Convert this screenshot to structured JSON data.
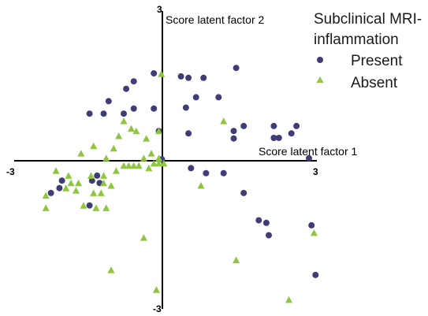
{
  "chart_data": {
    "type": "scatter",
    "xlabel": "Score latent factor 1",
    "ylabel": "Score latent factor 2",
    "xlim": [
      -3,
      3
    ],
    "ylim": [
      -3,
      3
    ],
    "x_ticks": [
      "-3",
      "3"
    ],
    "y_ticks": [
      "3",
      "-3"
    ],
    "grid": false,
    "legend": {
      "title": "Subclinical MRI-inflammation",
      "title_lines": [
        "Subclinical MRI-",
        "inflammation"
      ],
      "placement": "top-right"
    },
    "series": [
      {
        "name": "Present",
        "marker": "circle",
        "color": "#3f3d75",
        "points": [
          [
            -2.22,
            -0.65
          ],
          [
            -2.05,
            -0.55
          ],
          [
            -2.0,
            -0.4
          ],
          [
            -1.4,
            -0.4
          ],
          [
            -1.25,
            -0.45
          ],
          [
            -1.45,
            -0.9
          ],
          [
            -1.3,
            -0.3
          ],
          [
            -1.45,
            0.95
          ],
          [
            -1.17,
            0.95
          ],
          [
            -1.07,
            1.2
          ],
          [
            -0.72,
            1.45
          ],
          [
            -0.57,
            1.6
          ],
          [
            -0.57,
            1.05
          ],
          [
            -0.77,
            0.95
          ],
          [
            -0.17,
            1.76
          ],
          [
            -0.17,
            1.05
          ],
          [
            -0.07,
            0.6
          ],
          [
            -0.01,
            0.03
          ],
          [
            0.37,
            1.7
          ],
          [
            0.52,
            1.67
          ],
          [
            0.82,
            1.67
          ],
          [
            1.47,
            1.87
          ],
          [
            0.67,
            1.28
          ],
          [
            0.47,
            1.07
          ],
          [
            1.12,
            1.28
          ],
          [
            0.52,
            0.55
          ],
          [
            1.42,
            0.45
          ],
          [
            1.42,
            0.6
          ],
          [
            1.62,
            0.7
          ],
          [
            2.22,
            0.7
          ],
          [
            2.67,
            0.7
          ],
          [
            2.22,
            0.46
          ],
          [
            2.57,
            0.55
          ],
          [
            2.32,
            0.46
          ],
          [
            2.92,
            0.05
          ],
          [
            0.57,
            -0.15
          ],
          [
            0.87,
            -0.25
          ],
          [
            1.22,
            -0.25
          ],
          [
            1.62,
            -0.65
          ],
          [
            1.92,
            -1.2
          ],
          [
            2.07,
            -1.25
          ],
          [
            2.12,
            -1.5
          ],
          [
            2.97,
            -1.3
          ],
          [
            3.05,
            -2.3
          ]
        ]
      },
      {
        "name": "Absent",
        "marker": "triangle",
        "color": "#8ec63f",
        "points": [
          [
            -2.32,
            -0.7
          ],
          [
            -2.32,
            -0.95
          ],
          [
            -2.12,
            -0.2
          ],
          [
            -1.92,
            -0.55
          ],
          [
            -1.87,
            -0.3
          ],
          [
            -1.82,
            -0.45
          ],
          [
            -1.72,
            -0.6
          ],
          [
            -1.67,
            -0.45
          ],
          [
            -1.57,
            -0.9
          ],
          [
            -1.42,
            -0.3
          ],
          [
            -1.37,
            -0.65
          ],
          [
            -1.32,
            -0.95
          ],
          [
            -1.22,
            -0.65
          ],
          [
            -1.17,
            -0.45
          ],
          [
            -1.17,
            -0.3
          ],
          [
            -1.12,
            -0.95
          ],
          [
            -1.02,
            -0.5
          ],
          [
            -0.92,
            -0.2
          ],
          [
            -0.77,
            -0.1
          ],
          [
            -0.67,
            -0.1
          ],
          [
            -0.57,
            -0.1
          ],
          [
            -0.47,
            -0.1
          ],
          [
            -0.37,
            0.05
          ],
          [
            -0.27,
            -0.15
          ],
          [
            -0.17,
            -0.05
          ],
          [
            -0.07,
            0.05
          ],
          [
            -0.07,
            -0.05
          ],
          [
            0.03,
            -0.05
          ],
          [
            -1.62,
            0.15
          ],
          [
            -1.37,
            0.3
          ],
          [
            -1.12,
            0.05
          ],
          [
            -0.97,
            0.25
          ],
          [
            -0.87,
            0.5
          ],
          [
            -0.77,
            0.8
          ],
          [
            -0.62,
            0.65
          ],
          [
            -0.52,
            0.6
          ],
          [
            -0.32,
            0.45
          ],
          [
            -0.22,
            0.15
          ],
          [
            -0.07,
            0.6
          ],
          [
            -0.02,
            1.75
          ],
          [
            0.77,
            -0.5
          ],
          [
            1.22,
            0.8
          ],
          [
            -0.37,
            -1.55
          ],
          [
            -1.02,
            -2.2
          ],
          [
            -0.12,
            -2.6
          ],
          [
            1.47,
            -2.0
          ],
          [
            2.52,
            -2.8
          ],
          [
            3.02,
            -1.45
          ]
        ]
      }
    ]
  }
}
